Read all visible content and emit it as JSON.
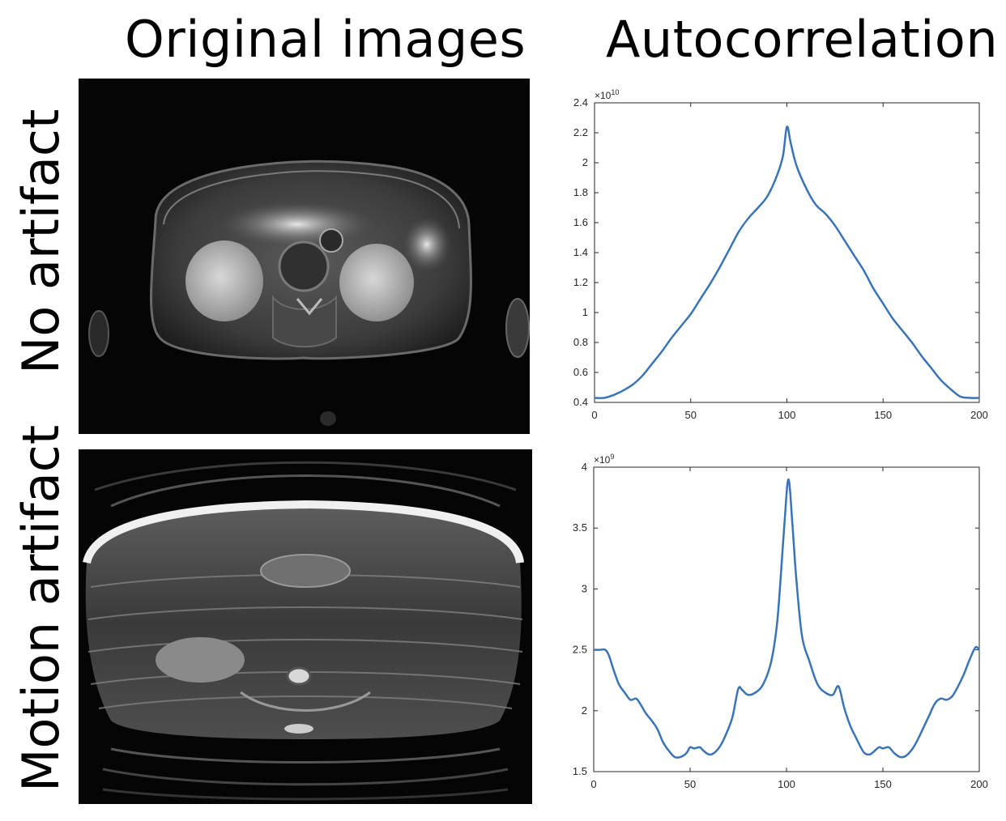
{
  "headers": {
    "left_column": "Original images",
    "right_column": "Autocorrelation"
  },
  "row_labels": [
    "No artifact",
    "Motion artifact"
  ],
  "images": [
    {
      "row": "No artifact",
      "description": "axial abdominal MRI slice, clean"
    },
    {
      "row": "Motion artifact",
      "description": "axial abdominal MRI slice with ghosting"
    }
  ],
  "chart_data": [
    {
      "type": "line",
      "title": "",
      "xlabel": "",
      "ylabel": "",
      "xlim": [
        0,
        200
      ],
      "ylim": [
        0.4,
        2.4
      ],
      "exponent_label": "×10",
      "exponent_power": "10",
      "x_ticks": [
        0,
        50,
        100,
        150,
        200
      ],
      "y_ticks": [
        0.4,
        0.6,
        0.8,
        1,
        1.2,
        1.4,
        1.6,
        1.8,
        2,
        2.2,
        2.4
      ],
      "y_tick_labels": [
        "0.4",
        "0.6",
        "0.8",
        "1",
        "1.2",
        "1.4",
        "1.6",
        "1.8",
        "2",
        "2.2",
        "2.4"
      ],
      "grid": false,
      "color": "#3a74b8",
      "series": [
        {
          "x": [
            0,
            5,
            10,
            15,
            20,
            25,
            30,
            35,
            40,
            45,
            50,
            55,
            60,
            65,
            70,
            75,
            80,
            85,
            90,
            95,
            98,
            100,
            102,
            105,
            110,
            115,
            120,
            125,
            130,
            135,
            140,
            145,
            150,
            155,
            160,
            165,
            170,
            175,
            180,
            185,
            190,
            195,
            200
          ],
          "values": [
            0.43,
            0.43,
            0.45,
            0.48,
            0.52,
            0.58,
            0.66,
            0.74,
            0.83,
            0.91,
            0.99,
            1.09,
            1.19,
            1.3,
            1.42,
            1.54,
            1.63,
            1.7,
            1.78,
            1.92,
            2.05,
            2.24,
            2.13,
            1.98,
            1.83,
            1.72,
            1.66,
            1.58,
            1.48,
            1.38,
            1.28,
            1.16,
            1.06,
            0.96,
            0.88,
            0.8,
            0.71,
            0.63,
            0.55,
            0.49,
            0.44,
            0.43,
            0.43
          ]
        }
      ]
    },
    {
      "type": "line",
      "title": "",
      "xlabel": "",
      "ylabel": "",
      "xlim": [
        0,
        200
      ],
      "ylim": [
        1.5,
        4
      ],
      "exponent_label": "×10",
      "exponent_power": "9",
      "x_ticks": [
        0,
        50,
        100,
        150,
        200
      ],
      "y_ticks": [
        1.5,
        2,
        2.5,
        3,
        3.5,
        4
      ],
      "y_tick_labels": [
        "1.5",
        "2",
        "2.5",
        "3",
        "3.5",
        "4"
      ],
      "grid": false,
      "color": "#3a74b8",
      "series": [
        {
          "x": [
            0,
            3,
            6,
            8,
            10,
            13,
            16,
            19,
            22,
            24,
            27,
            30,
            33,
            36,
            39,
            42,
            45,
            48,
            50,
            52,
            55,
            57,
            60,
            63,
            66,
            69,
            72,
            75,
            77,
            80,
            84,
            88,
            92,
            95,
            97,
            99,
            101,
            103,
            105,
            108,
            112,
            116,
            120,
            124,
            127,
            130,
            133,
            136,
            140,
            143,
            145,
            148,
            150,
            153,
            156,
            159,
            162,
            165,
            168,
            171,
            174,
            177,
            180,
            183,
            186,
            189,
            192,
            195,
            198,
            200
          ],
          "values": [
            2.5,
            2.5,
            2.5,
            2.45,
            2.35,
            2.22,
            2.15,
            2.09,
            2.1,
            2.06,
            1.98,
            1.92,
            1.85,
            1.74,
            1.67,
            1.62,
            1.62,
            1.65,
            1.7,
            1.69,
            1.7,
            1.67,
            1.64,
            1.66,
            1.72,
            1.82,
            1.95,
            2.18,
            2.17,
            2.13,
            2.15,
            2.22,
            2.4,
            2.7,
            3.1,
            3.55,
            3.9,
            3.55,
            3.1,
            2.62,
            2.4,
            2.22,
            2.15,
            2.13,
            2.2,
            2.02,
            1.88,
            1.78,
            1.66,
            1.64,
            1.66,
            1.7,
            1.69,
            1.7,
            1.65,
            1.62,
            1.63,
            1.68,
            1.76,
            1.86,
            1.96,
            2.06,
            2.1,
            2.09,
            2.12,
            2.2,
            2.3,
            2.42,
            2.52,
            2.5
          ]
        }
      ]
    }
  ]
}
